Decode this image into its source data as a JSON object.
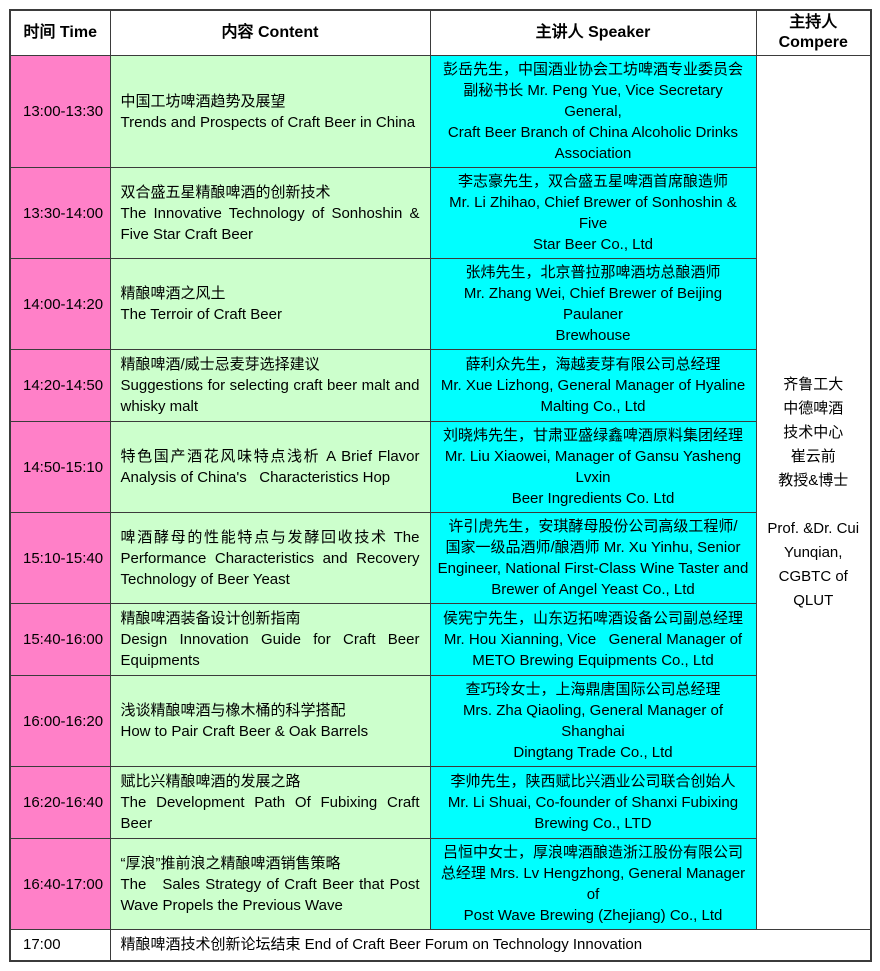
{
  "colors": {
    "time-bg": "#FF80C8",
    "content-bg": "#CCFFCC",
    "speaker-bg": "#00FFFF",
    "header-bg": "#FFFFFF",
    "border": "#3B3B3B",
    "text": "#000000"
  },
  "header": {
    "time": "时间 Time",
    "content": "内容 Content",
    "speaker": "主讲人 Speaker",
    "compere": "主持人\nCompere"
  },
  "rows": [
    {
      "time": "13:00-13:30",
      "content": "中国工坊啤酒趋势及展望\nTrends and Prospects of Craft Beer in China",
      "speaker": "彭岳先生，中国酒业协会工坊啤酒专业委员会\n副秘书长 Mr. Peng Yue, Vice Secretary General,\nCraft Beer Branch of China Alcoholic Drinks\nAssociation"
    },
    {
      "time": "13:30-14:00",
      "content": "双合盛五星精酿啤酒的创新技术\nThe Innovative Technology of Sonhoshin & Five Star Craft Beer",
      "speaker": "李志豪先生，双合盛五星啤酒首席酿造师\nMr. Li Zhihao, Chief Brewer of Sonhoshin & Five\nStar Beer Co., Ltd"
    },
    {
      "time": "14:00-14:20",
      "content": "精酿啤酒之风土\nThe Terroir of Craft Beer",
      "speaker": "张炜先生，北京普拉那啤酒坊总酿酒师\nMr. Zhang Wei, Chief Brewer of Beijing Paulaner\nBrewhouse"
    },
    {
      "time": "14:20-14:50",
      "content": "精酿啤酒/威士忌麦芽选择建议\nSuggestions for selecting craft beer malt and whisky malt",
      "speaker": "薛利众先生，海越麦芽有限公司总经理\nMr. Xue Lizhong, General Manager of Hyaline\nMalting Co., Ltd"
    },
    {
      "time": "14:50-15:10",
      "content": "特色国产酒花风味特点浅析 A Brief Flavor Analysis of China's   Characteristics Hop",
      "speaker": "刘晓炜先生，甘肃亚盛绿鑫啤酒原料集团经理\nMr. Liu Xiaowei, Manager of Gansu Yasheng Lvxin\nBeer Ingredients Co. Ltd"
    },
    {
      "time": "15:10-15:40",
      "content": "啤酒酵母的性能特点与发酵回收技术 The Performance Characteristics and Recovery Technology of Beer Yeast",
      "speaker": "许引虎先生，安琪酵母股份公司高级工程师/\n国家一级品酒师/酿酒师 Mr. Xu Yinhu, Senior\nEngineer, National First-Class Wine Taster and\nBrewer of Angel Yeast Co., Ltd"
    },
    {
      "time": "15:40-16:00",
      "content": "精酿啤酒装备设计创新指南\nDesign Innovation Guide for Craft Beer Equipments",
      "speaker": "侯宪宁先生，山东迈拓啤酒设备公司副总经理\nMr. Hou Xianning, Vice   General Manager of\nMETO Brewing Equipments Co., Ltd"
    },
    {
      "time": "16:00-16:20",
      "content": "浅谈精酿啤酒与橡木桶的科学搭配\nHow to Pair Craft Beer & Oak Barrels",
      "speaker": "查巧玲女士，上海鼎唐国际公司总经理\nMrs. Zha Qiaoling, General Manager of Shanghai\nDingtang Trade Co., Ltd"
    },
    {
      "time": "16:20-16:40",
      "content": "赋比兴精酿啤酒的发展之路\nThe Development Path Of Fubixing Craft Beer",
      "speaker": "李帅先生，陕西赋比兴酒业公司联合创始人\nMr. Li Shuai, Co-founder of Shanxi Fubixing\nBrewing Co., LTD"
    },
    {
      "time": "16:40-17:00",
      "content": "“厚浪”推前浪之精酿啤酒销售策略\nThe   Sales Strategy of Craft Beer that Post Wave Propels the Previous Wave",
      "speaker": "吕恒中女士，厚浪啤酒酿造浙江股份有限公司\n总经理 Mrs. Lv Hengzhong, General Manager of\nPost Wave Brewing (Zhejiang) Co., Ltd"
    }
  ],
  "compere": "齐鲁工大\n中德啤酒\n技术中心\n崔云前\n教授&博士\n\nProf. &Dr. Cui\nYunqian,\nCGBTC of\nQLUT",
  "footer": {
    "time": "17:00",
    "text": "精酿啤酒技术创新论坛结束 End of Craft Beer Forum on Technology Innovation"
  }
}
